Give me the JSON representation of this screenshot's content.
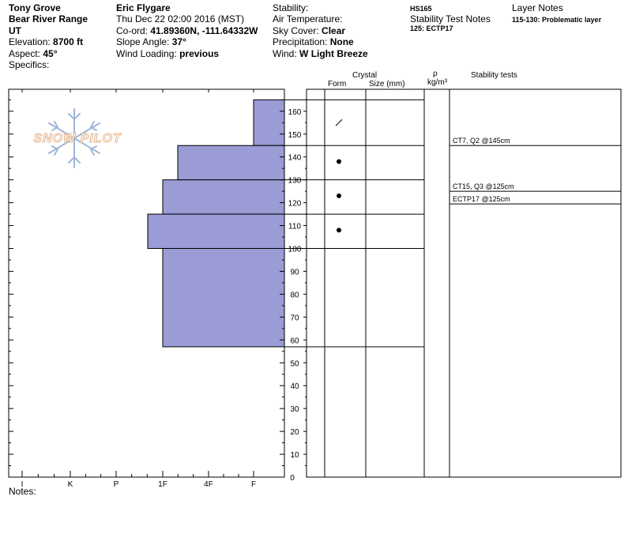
{
  "header": {
    "col1": {
      "location": "Tony Grove",
      "range": "Bear River Range",
      "state": "UT",
      "elevation_label": "Elevation:",
      "elevation_value": "8700 ft",
      "aspect_label": "Aspect:",
      "aspect_value": "45°",
      "specifics_label": "Specifics:"
    },
    "col2": {
      "observer": "Eric Flygare",
      "datetime": "Thu Dec 22 02:00 2016 (MST)",
      "coord_label": "Co-ord:",
      "coord_value": "41.89360N, -111.64332W",
      "slope_label": "Slope Angle:",
      "slope_value": "37°",
      "wind_loading_label": "Wind Loading:",
      "wind_loading_value": "previous"
    },
    "col3": {
      "stability_label": "Stability:",
      "air_temp_label": "Air Temperature:",
      "sky_label": "Sky Cover:",
      "sky_value": "Clear",
      "precip_label": "Precipitation:",
      "precip_value": "None",
      "wind_label": "Wind:",
      "wind_value": "W Light Breeze"
    },
    "col4": {
      "hs": "HS165",
      "stability_notes_label": "Stability Test Notes",
      "stability_note": "125: ECTP17"
    },
    "col5": {
      "layer_notes_label": "Layer Notes",
      "layer_note": "115-130: Problematic layer"
    }
  },
  "logo_text": "SNOW PILOT",
  "columns": {
    "crystal": "Crystal",
    "form": "Form",
    "size": "Size (mm)",
    "rho": "ρ",
    "rho_unit": "kg/m³",
    "stability_tests": "Stability tests"
  },
  "notes_label": "Notes:",
  "colors": {
    "layer_fill": "#9b9bd6",
    "layer_stroke": "#000000"
  },
  "chart_data": {
    "type": "bar",
    "orientation": "horizontal",
    "y_axis": {
      "min": 0,
      "max": 165,
      "ticks": [
        10,
        20,
        30,
        40,
        50,
        60,
        70,
        80,
        90,
        100,
        110,
        120,
        130,
        140,
        150,
        160
      ],
      "tick_labels": [
        "10",
        "20",
        "30",
        "40",
        "50",
        "60",
        "70",
        "80",
        "90",
        "100",
        "110",
        "120",
        "130",
        "140",
        "150",
        "160"
      ],
      "extra_label": "0"
    },
    "x_axis": {
      "categories": [
        "I",
        "K",
        "P",
        "1F",
        "4F",
        "F"
      ]
    },
    "hardness_profile": [
      {
        "bottom": 145,
        "top": 165,
        "hardness": "F"
      },
      {
        "bottom": 130,
        "top": 145,
        "hardness": "4F+"
      },
      {
        "bottom": 115,
        "top": 130,
        "hardness": "1F"
      },
      {
        "bottom": 100,
        "top": 115,
        "hardness": "1F-"
      },
      {
        "bottom": 57,
        "top": 100,
        "hardness": "1F"
      }
    ],
    "layer_boundaries": [
      165,
      145,
      130,
      115,
      100,
      57
    ],
    "grain_forms": [
      {
        "depth": 155,
        "symbol": "decomposing"
      },
      {
        "depth": 138,
        "symbol": "rounded"
      },
      {
        "depth": 123,
        "symbol": "rounded"
      },
      {
        "depth": 108,
        "symbol": "rounded"
      }
    ],
    "stability_tests": [
      {
        "depth": 145,
        "label": "CT7, Q2 @145cm"
      },
      {
        "depth": 125,
        "label": "CT15, Q3 @125cm"
      },
      {
        "depth": 125,
        "label": "ECTP17 @125cm"
      }
    ]
  }
}
